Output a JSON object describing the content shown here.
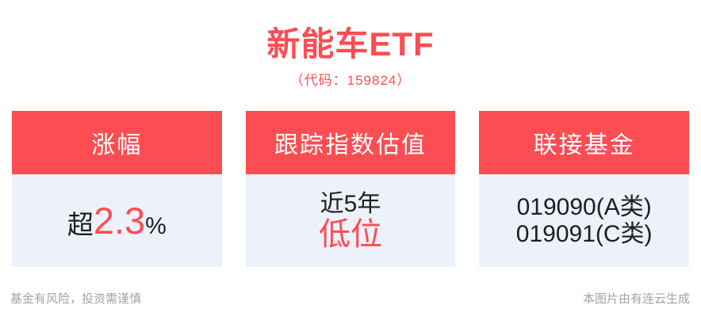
{
  "header": {
    "title": "新能车ETF",
    "subtitle": "（代码：159824）"
  },
  "cards": [
    {
      "header": "涨幅",
      "body": {
        "prefix": "超",
        "value": "2.3",
        "suffix": "%"
      }
    },
    {
      "header": "跟踪指数估值",
      "body": {
        "line1": "近5年",
        "line2": "低位"
      }
    },
    {
      "header": "联接基金",
      "body": {
        "line1": "019090(A类)",
        "line2": "019091(C类)"
      }
    }
  ],
  "footer": {
    "left": "基金有风险，投资需谨慎",
    "right": "本图片由有连云生成"
  },
  "colors": {
    "accent_red": "#FC4D52",
    "card_body_bg": "#EDF1FA",
    "text_black": "#1E1E1E",
    "footer_gray": "#A3A3A3"
  }
}
